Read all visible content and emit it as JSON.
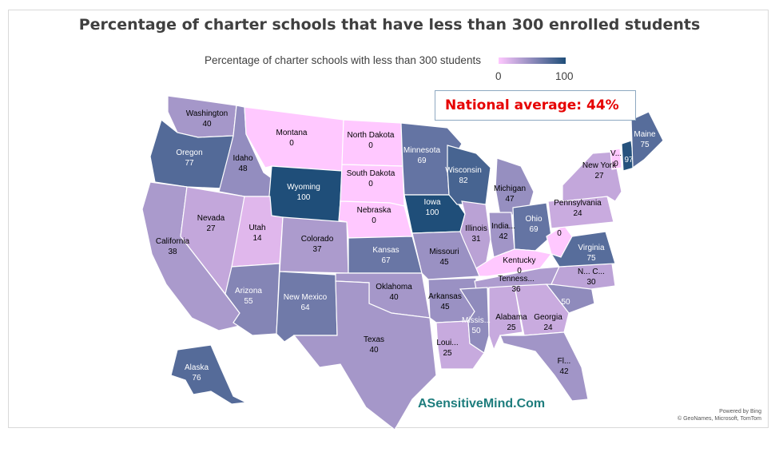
{
  "title": "Percentage of charter schools that have less than 300 enrolled students",
  "legend": {
    "label": "Percentage of charter schools with less than 300 students",
    "min": "0",
    "max": "100",
    "color_low": "#ffc8ff",
    "color_high": "#1f4e79"
  },
  "national_average": "National average: 44%",
  "watermark": "ASensitiveMind.Com",
  "credit": {
    "line1": "Powered by Bing",
    "line2": "© GeoNames, Microsoft, TomTom"
  },
  "states": [
    {
      "id": "WA",
      "name": "Washington",
      "value": 40
    },
    {
      "id": "OR",
      "name": "Oregon",
      "value": 77
    },
    {
      "id": "CA",
      "name": "California",
      "value": 38
    },
    {
      "id": "ID",
      "name": "Idaho",
      "value": 48
    },
    {
      "id": "NV",
      "name": "Nevada",
      "value": 27
    },
    {
      "id": "MT",
      "name": "Montana",
      "value": 0
    },
    {
      "id": "WY",
      "name": "Wyoming",
      "value": 100
    },
    {
      "id": "UT",
      "name": "Utah",
      "value": 14
    },
    {
      "id": "AZ",
      "name": "Arizona",
      "value": 55
    },
    {
      "id": "CO",
      "name": "Colorado",
      "value": 37
    },
    {
      "id": "NM",
      "name": "New Mexico",
      "value": 64
    },
    {
      "id": "ND",
      "name": "North Dakota",
      "value": 0
    },
    {
      "id": "SD",
      "name": "South Dakota",
      "value": 0
    },
    {
      "id": "NE",
      "name": "Nebraska",
      "value": 0
    },
    {
      "id": "KS",
      "name": "Kansas",
      "value": 67
    },
    {
      "id": "OK",
      "name": "Oklahoma",
      "value": 40
    },
    {
      "id": "TX",
      "name": "Texas",
      "value": 40
    },
    {
      "id": "MN",
      "name": "Minnesota",
      "value": 69
    },
    {
      "id": "IA",
      "name": "Iowa",
      "value": 100
    },
    {
      "id": "MO",
      "name": "Missouri",
      "value": 45
    },
    {
      "id": "AR",
      "name": "Arkansas",
      "value": 45
    },
    {
      "id": "LA",
      "name": "Loui...",
      "value": 25
    },
    {
      "id": "WI",
      "name": "Wisconsin",
      "value": 82
    },
    {
      "id": "IL",
      "name": "Illinois",
      "value": 31
    },
    {
      "id": "MI",
      "name": "Michigan",
      "value": 47
    },
    {
      "id": "IN",
      "name": "India...",
      "value": 42
    },
    {
      "id": "OH",
      "name": "Ohio",
      "value": 69
    },
    {
      "id": "KY",
      "name": "Kentucky",
      "value": 0
    },
    {
      "id": "TN",
      "name": "Tenness...",
      "value": 36
    },
    {
      "id": "MS",
      "name": "Missis...",
      "value": 50
    },
    {
      "id": "AL",
      "name": "Alabama",
      "value": 25
    },
    {
      "id": "GA",
      "name": "Georgia",
      "value": 24
    },
    {
      "id": "FL",
      "name": "Fl...",
      "value": 42
    },
    {
      "id": "SC",
      "name": "",
      "value": 50
    },
    {
      "id": "NC",
      "name": "N... C...",
      "value": 30
    },
    {
      "id": "VA",
      "name": "Virginia",
      "value": 75
    },
    {
      "id": "WV",
      "name": "",
      "value": 0
    },
    {
      "id": "PA",
      "name": "Pennsylvania",
      "value": 24
    },
    {
      "id": "NY",
      "name": "New York",
      "value": 27
    },
    {
      "id": "VT",
      "name": "V...",
      "value": 0
    },
    {
      "id": "NH",
      "name": "",
      "value": 97
    },
    {
      "id": "ME",
      "name": "Maine",
      "value": 75
    },
    {
      "id": "AK",
      "name": "Alaska",
      "value": 76
    }
  ]
}
